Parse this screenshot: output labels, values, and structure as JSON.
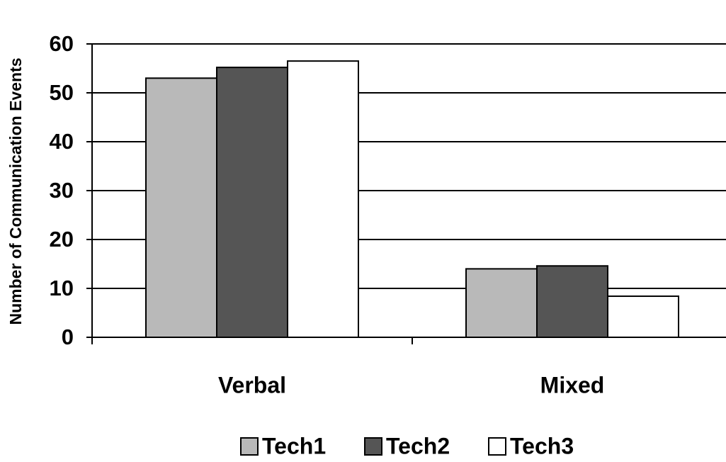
{
  "chart_data": {
    "type": "bar",
    "y_label": "Number of Communication Events",
    "categories": [
      "Verbal",
      "Mixed"
    ],
    "series": [
      {
        "name": "Tech1",
        "color": "#b9b9b9",
        "values": [
          53,
          14
        ]
      },
      {
        "name": "Tech2",
        "color": "#555555",
        "values": [
          55.2,
          14.6
        ]
      },
      {
        "name": "Tech3",
        "color": "#ffffff",
        "values": [
          56.5,
          8.4
        ]
      }
    ],
    "ylim": [
      0,
      60
    ],
    "yticks": [
      0,
      10,
      20,
      30,
      40,
      50,
      60
    ],
    "grid": true,
    "legend": "bottom"
  }
}
